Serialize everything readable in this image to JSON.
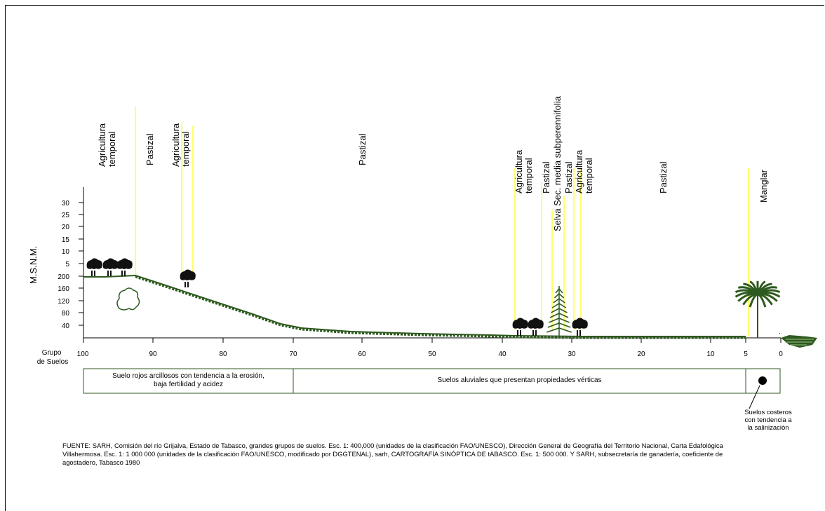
{
  "chart_data": {
    "type": "diagram",
    "y_axis_label": "M.S.N.M.",
    "y_ticks_upper": [
      "30",
      "25",
      "20",
      "15",
      "10",
      "5"
    ],
    "y_ticks_lower": [
      "200",
      "160",
      "120",
      "80",
      "40"
    ],
    "x_axis_title": "Grupo\nde Suelos",
    "x_ticks": [
      "100",
      "90",
      "80",
      "70",
      "60",
      "50",
      "40",
      "30",
      "20",
      "10",
      "5",
      "0"
    ],
    "land_use_labels": [
      {
        "text": "Agricultura\ntemporal"
      },
      {
        "text": "Pastizal"
      },
      {
        "text": "Agricultura\ntemporal"
      },
      {
        "text": "Pastizal"
      },
      {
        "text": "Agricultura\ntemporal"
      },
      {
        "text": "Pastizal"
      },
      {
        "text": "Selva Sec. media subperennifolia"
      },
      {
        "text": "Pastizal"
      },
      {
        "text": "Agricultura\ntemporal"
      },
      {
        "text": "Pastizal"
      },
      {
        "text": "Manglar"
      }
    ],
    "soil_groups": [
      {
        "text": "Suelo rojos arcillosos con tendencia a la erosión,\nbaja fertilidad y acidez"
      },
      {
        "text": "Suelos aluviales que presentan propiedades vérticas"
      }
    ],
    "coastal_note": "Suelos costeros\ncon tendencia a\nla salinización",
    "source": "FUENTE: SARH, Comisión del río Grijalva, Estado de Tabasco, grandes grupos de suelos. Esc. 1: 400,000 (unidades de la clasificación FAO/UNESCO), Dirección General de Geografía  del Territorio Nacional, Carta Edafológica Villahermosa. Esc. 1: 1 000 000 (unidades de la clasificación FAO/UNESCO,  modificado por DGGTENAL), sarh, CARTOGRAFÍA SINÓPTICA DE tABASCO. Esc. 1: 500 000. Y SARH, subsecretaría de ganadería, coeficiente de agostadero, Tabasco 1980",
    "colors": {
      "divider": "#ffff00",
      "terrain": "#2d5a1e",
      "tree": "#111111",
      "box_border": "#2d5a1e"
    }
  }
}
